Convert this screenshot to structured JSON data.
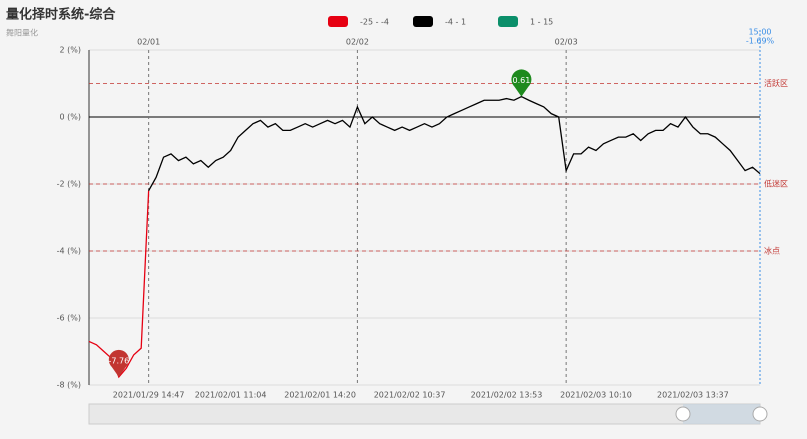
{
  "chart_data": {
    "type": "line",
    "title": "量化择时系统-综合",
    "subtitle": "舞阳量化",
    "categories": [
      null,
      null,
      null,
      null,
      null,
      null,
      null,
      null,
      "2021/01/29 14:47",
      null,
      null,
      null,
      null,
      null,
      null,
      null,
      null,
      null,
      null,
      "2021/02/01 11:04",
      null,
      null,
      null,
      null,
      null,
      null,
      null,
      null,
      null,
      null,
      null,
      "2021/02/01 14:20",
      null,
      null,
      null,
      null,
      null,
      null,
      null,
      null,
      null,
      null,
      null,
      "2021/02/02 10:37",
      null,
      null,
      null,
      null,
      null,
      null,
      null,
      null,
      null,
      null,
      null,
      null,
      "2021/02/02 13:53",
      null,
      null,
      null,
      null,
      null,
      null,
      null,
      null,
      null,
      null,
      null,
      "2021/02/03 10:10",
      null,
      null,
      null,
      null,
      null,
      null,
      null,
      null,
      null,
      null,
      null,
      null,
      "2021/02/03 13:37",
      null,
      null,
      null,
      null,
      null,
      null,
      null,
      null,
      null
    ],
    "day_categories": [
      null,
      null,
      null,
      null,
      null,
      null,
      null,
      null,
      "02/01",
      null,
      null,
      null,
      null,
      null,
      null,
      null,
      null,
      null,
      null,
      null,
      null,
      null,
      null,
      null,
      null,
      null,
      null,
      null,
      null,
      null,
      null,
      null,
      null,
      null,
      null,
      null,
      "02/02",
      null,
      null,
      null,
      null,
      null,
      null,
      null,
      null,
      null,
      null,
      null,
      null,
      null,
      null,
      null,
      null,
      null,
      null,
      null,
      null,
      null,
      null,
      null,
      null,
      null,
      null,
      null,
      "02/03",
      null,
      null,
      null,
      null,
      null,
      null,
      null,
      null,
      null,
      null,
      null,
      null,
      null,
      null,
      null,
      null,
      null,
      null,
      null,
      null,
      null,
      null,
      null,
      null,
      null,
      null
    ],
    "series": [
      {
        "name": "综合",
        "values": [
          -6.7,
          -6.8,
          -7.0,
          -7.2,
          -7.76,
          -7.5,
          -7.1,
          -6.9,
          -2.2,
          -1.8,
          -1.2,
          -1.1,
          -1.3,
          -1.2,
          -1.4,
          -1.3,
          -1.5,
          -1.3,
          -1.2,
          -1.0,
          -0.6,
          -0.4,
          -0.2,
          -0.1,
          -0.3,
          -0.2,
          -0.4,
          -0.4,
          -0.3,
          -0.2,
          -0.3,
          -0.2,
          -0.1,
          -0.2,
          -0.1,
          -0.3,
          0.3,
          -0.2,
          0.0,
          -0.2,
          -0.3,
          -0.4,
          -0.3,
          -0.4,
          -0.3,
          -0.2,
          -0.3,
          -0.2,
          0.0,
          0.1,
          0.2,
          0.3,
          0.4,
          0.5,
          0.5,
          0.5,
          0.55,
          0.5,
          0.61,
          0.5,
          0.4,
          0.3,
          0.1,
          0.0,
          -1.6,
          -1.1,
          -1.1,
          -0.9,
          -1.0,
          -0.8,
          -0.7,
          -0.6,
          -0.6,
          -0.5,
          -0.7,
          -0.5,
          -0.4,
          -0.4,
          -0.2,
          -0.3,
          0.0,
          -0.3,
          -0.5,
          -0.5,
          -0.6,
          -0.8,
          -1.0,
          -1.3,
          -1.6,
          -1.5,
          -1.69
        ]
      }
    ],
    "visual_pieces": [
      {
        "label": "-25 - -4",
        "min": -25,
        "max": -4,
        "color": "#e60012"
      },
      {
        "label": "-4 - 1",
        "min": -4,
        "max": 1,
        "color": "#000000"
      },
      {
        "label": "1 - 15",
        "min": 1,
        "max": 15,
        "color": "#0b8f6a"
      }
    ],
    "mark_lines": [
      {
        "value": 1,
        "label": "活跃区"
      },
      {
        "value": -2,
        "label": "低迷区"
      },
      {
        "value": -4,
        "label": "冰点"
      }
    ],
    "mark_line_color": "#c23531",
    "mark_points": [
      {
        "value": -7.76,
        "color": "#c23531"
      },
      {
        "value": 0.61,
        "color": "#1e8a1e"
      }
    ],
    "pointer": {
      "time": "15:00",
      "value": -1.69,
      "label": "-1.69%",
      "color": "#3a8ee6"
    },
    "ylim": [
      -8,
      2
    ],
    "yticks": [
      {
        "value": 2,
        "label": "2 (%)"
      },
      {
        "value": 0,
        "label": "0 (%)"
      },
      {
        "value": -2,
        "label": "-2 (%)"
      },
      {
        "value": -4,
        "label": "-4 (%)"
      },
      {
        "value": -6,
        "label": "-6 (%)"
      },
      {
        "value": -8,
        "label": "-8 (%)"
      }
    ],
    "grid": true
  }
}
